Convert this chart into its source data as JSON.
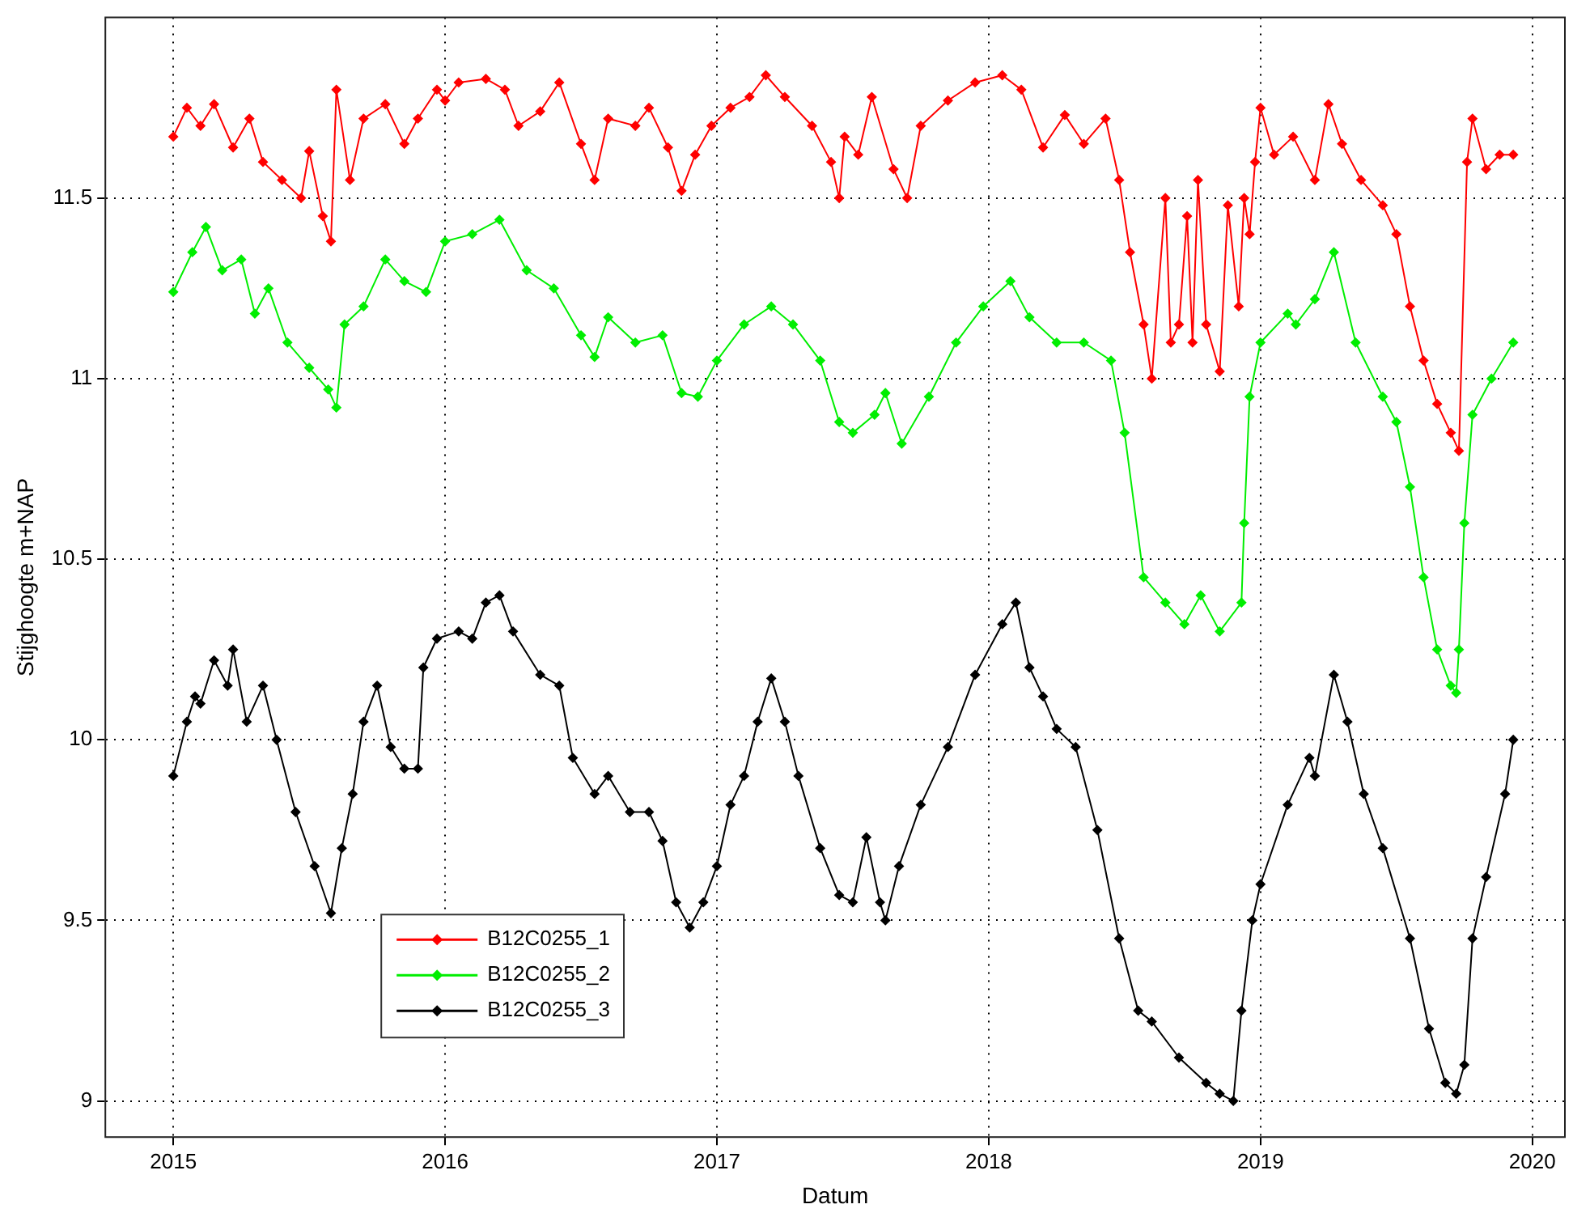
{
  "chart_data": {
    "type": "line",
    "xlabel": "Datum",
    "ylabel": "Stijghoogte m+NAP",
    "xlim": [
      2014.75,
      2020.12
    ],
    "xticks": [
      2015,
      2016,
      2017,
      2018,
      2019,
      2020
    ],
    "ylim": [
      8.9,
      12.0
    ],
    "yticks": [
      9,
      9.5,
      10,
      10.5,
      11,
      11.5
    ],
    "grid": true,
    "legend": "bottom left",
    "marker": "diamond",
    "line_style": "solid",
    "series": [
      {
        "name": "B12C0255_1",
        "color": "#ff0000",
        "x": [
          2015.0,
          2015.05,
          2015.1,
          2015.15,
          2015.22,
          2015.28,
          2015.33,
          2015.4,
          2015.47,
          2015.5,
          2015.55,
          2015.58,
          2015.6,
          2015.65,
          2015.7,
          2015.78,
          2015.85,
          2015.9,
          2015.97,
          2016.0,
          2016.05,
          2016.15,
          2016.22,
          2016.27,
          2016.35,
          2016.42,
          2016.5,
          2016.55,
          2016.6,
          2016.7,
          2016.75,
          2016.82,
          2016.87,
          2016.92,
          2016.98,
          2017.05,
          2017.12,
          2017.18,
          2017.25,
          2017.35,
          2017.42,
          2017.45,
          2017.47,
          2017.52,
          2017.57,
          2017.65,
          2017.7,
          2017.75,
          2017.85,
          2017.95,
          2018.05,
          2018.12,
          2018.2,
          2018.28,
          2018.35,
          2018.43,
          2018.48,
          2018.52,
          2018.57,
          2018.6,
          2018.65,
          2018.67,
          2018.7,
          2018.73,
          2018.75,
          2018.77,
          2018.8,
          2018.85,
          2018.88,
          2018.92,
          2018.94,
          2018.96,
          2018.98,
          2019.0,
          2019.05,
          2019.12,
          2019.2,
          2019.25,
          2019.3,
          2019.37,
          2019.45,
          2019.5,
          2019.55,
          2019.6,
          2019.65,
          2019.7,
          2019.73,
          2019.76,
          2019.78,
          2019.83,
          2019.88,
          2019.93
        ],
        "values": [
          11.67,
          11.75,
          11.7,
          11.76,
          11.64,
          11.72,
          11.6,
          11.55,
          11.5,
          11.63,
          11.45,
          11.38,
          11.8,
          11.55,
          11.72,
          11.76,
          11.65,
          11.72,
          11.8,
          11.77,
          11.82,
          11.83,
          11.8,
          11.7,
          11.74,
          11.82,
          11.65,
          11.55,
          11.72,
          11.7,
          11.75,
          11.64,
          11.52,
          11.62,
          11.7,
          11.75,
          11.78,
          11.84,
          11.78,
          11.7,
          11.6,
          11.5,
          11.67,
          11.62,
          11.78,
          11.58,
          11.5,
          11.7,
          11.77,
          11.82,
          11.84,
          11.8,
          11.64,
          11.73,
          11.65,
          11.72,
          11.55,
          11.35,
          11.15,
          11.0,
          11.5,
          11.1,
          11.15,
          11.45,
          11.1,
          11.55,
          11.15,
          11.02,
          11.48,
          11.2,
          11.5,
          11.4,
          11.6,
          11.75,
          11.62,
          11.67,
          11.55,
          11.76,
          11.65,
          11.55,
          11.48,
          11.4,
          11.2,
          11.05,
          10.93,
          10.85,
          10.8,
          11.6,
          11.72,
          11.58,
          11.62,
          11.62
        ]
      },
      {
        "name": "B12C0255_2",
        "color": "#00ee00",
        "x": [
          2015.0,
          2015.07,
          2015.12,
          2015.18,
          2015.25,
          2015.3,
          2015.35,
          2015.42,
          2015.5,
          2015.57,
          2015.6,
          2015.63,
          2015.7,
          2015.78,
          2015.85,
          2015.93,
          2016.0,
          2016.1,
          2016.2,
          2016.3,
          2016.4,
          2016.5,
          2016.55,
          2016.6,
          2016.7,
          2016.8,
          2016.87,
          2016.93,
          2017.0,
          2017.1,
          2017.2,
          2017.28,
          2017.38,
          2017.45,
          2017.5,
          2017.58,
          2017.62,
          2017.68,
          2017.78,
          2017.88,
          2017.98,
          2018.08,
          2018.15,
          2018.25,
          2018.35,
          2018.45,
          2018.5,
          2018.57,
          2018.65,
          2018.72,
          2018.78,
          2018.85,
          2018.93,
          2018.94,
          2018.96,
          2019.0,
          2019.1,
          2019.13,
          2019.2,
          2019.27,
          2019.35,
          2019.45,
          2019.5,
          2019.55,
          2019.6,
          2019.65,
          2019.7,
          2019.72,
          2019.73,
          2019.75,
          2019.78,
          2019.85,
          2019.93
        ],
        "values": [
          11.24,
          11.35,
          11.42,
          11.3,
          11.33,
          11.18,
          11.25,
          11.1,
          11.03,
          10.97,
          10.92,
          11.15,
          11.2,
          11.33,
          11.27,
          11.24,
          11.38,
          11.4,
          11.44,
          11.3,
          11.25,
          11.12,
          11.06,
          11.17,
          11.1,
          11.12,
          10.96,
          10.95,
          11.05,
          11.15,
          11.2,
          11.15,
          11.05,
          10.88,
          10.85,
          10.9,
          10.96,
          10.82,
          10.95,
          11.1,
          11.2,
          11.27,
          11.17,
          11.1,
          11.1,
          11.05,
          10.85,
          10.45,
          10.38,
          10.32,
          10.4,
          10.3,
          10.38,
          10.6,
          10.95,
          11.1,
          11.18,
          11.15,
          11.22,
          11.35,
          11.1,
          10.95,
          10.88,
          10.7,
          10.45,
          10.25,
          10.15,
          10.13,
          10.25,
          10.6,
          10.9,
          11.0,
          11.1
        ]
      },
      {
        "name": "B12C0255_3",
        "color": "#000000",
        "x": [
          2015.0,
          2015.05,
          2015.08,
          2015.1,
          2015.15,
          2015.2,
          2015.22,
          2015.27,
          2015.33,
          2015.38,
          2015.45,
          2015.52,
          2015.58,
          2015.62,
          2015.66,
          2015.7,
          2015.75,
          2015.8,
          2015.85,
          2015.9,
          2015.92,
          2015.97,
          2016.05,
          2016.1,
          2016.15,
          2016.2,
          2016.25,
          2016.35,
          2016.42,
          2016.47,
          2016.55,
          2016.6,
          2016.68,
          2016.75,
          2016.8,
          2016.85,
          2016.9,
          2016.95,
          2017.0,
          2017.05,
          2017.1,
          2017.15,
          2017.2,
          2017.25,
          2017.3,
          2017.38,
          2017.45,
          2017.5,
          2017.55,
          2017.6,
          2017.62,
          2017.67,
          2017.75,
          2017.85,
          2017.95,
          2018.05,
          2018.1,
          2018.15,
          2018.2,
          2018.25,
          2018.32,
          2018.4,
          2018.48,
          2018.55,
          2018.6,
          2018.7,
          2018.8,
          2018.85,
          2018.9,
          2018.93,
          2018.97,
          2019.0,
          2019.1,
          2019.18,
          2019.2,
          2019.27,
          2019.32,
          2019.38,
          2019.45,
          2019.55,
          2019.62,
          2019.68,
          2019.72,
          2019.75,
          2019.78,
          2019.83,
          2019.9,
          2019.93
        ],
        "values": [
          9.9,
          10.05,
          10.12,
          10.1,
          10.22,
          10.15,
          10.25,
          10.05,
          10.15,
          10.0,
          9.8,
          9.65,
          9.52,
          9.7,
          9.85,
          10.05,
          10.15,
          9.98,
          9.92,
          9.92,
          10.2,
          10.28,
          10.3,
          10.28,
          10.38,
          10.4,
          10.3,
          10.18,
          10.15,
          9.95,
          9.85,
          9.9,
          9.8,
          9.8,
          9.72,
          9.55,
          9.48,
          9.55,
          9.65,
          9.82,
          9.9,
          10.05,
          10.17,
          10.05,
          9.9,
          9.7,
          9.57,
          9.55,
          9.73,
          9.55,
          9.5,
          9.65,
          9.82,
          9.98,
          10.18,
          10.32,
          10.38,
          10.2,
          10.12,
          10.03,
          9.98,
          9.75,
          9.45,
          9.25,
          9.22,
          9.12,
          9.05,
          9.02,
          9.0,
          9.25,
          9.5,
          9.6,
          9.82,
          9.95,
          9.9,
          10.18,
          10.05,
          9.85,
          9.7,
          9.45,
          9.2,
          9.05,
          9.02,
          9.1,
          9.45,
          9.62,
          9.85,
          10.0
        ]
      }
    ]
  }
}
